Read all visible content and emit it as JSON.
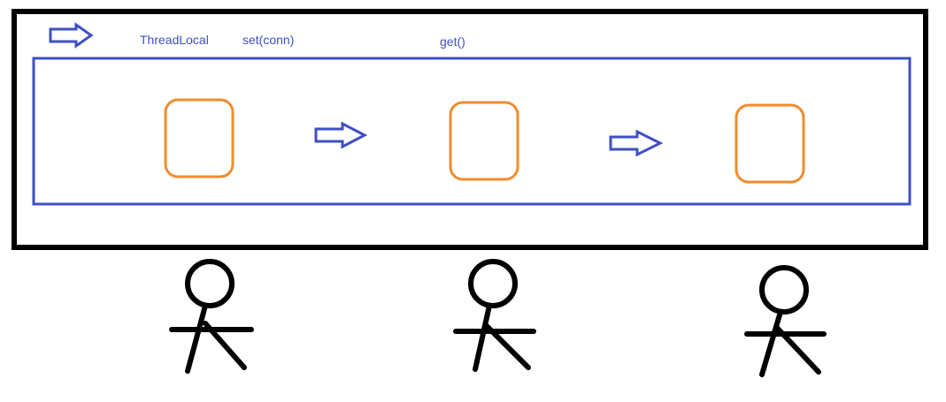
{
  "labels": {
    "threadlocal": "ThreadLocal",
    "set": "set(conn)",
    "get": "get()"
  },
  "colors": {
    "outer_frame": "#000000",
    "inner_frame": "#3f4fc4",
    "text": "#3f4fc4",
    "arrow": "#3f4fc4",
    "box": "#f08c2e",
    "figure": "#000000"
  },
  "icons": {
    "header_arrow": "hollow-right-arrow-icon",
    "flow_arrows": "hollow-right-arrow-icon",
    "figures": "stick-figure-icon"
  }
}
